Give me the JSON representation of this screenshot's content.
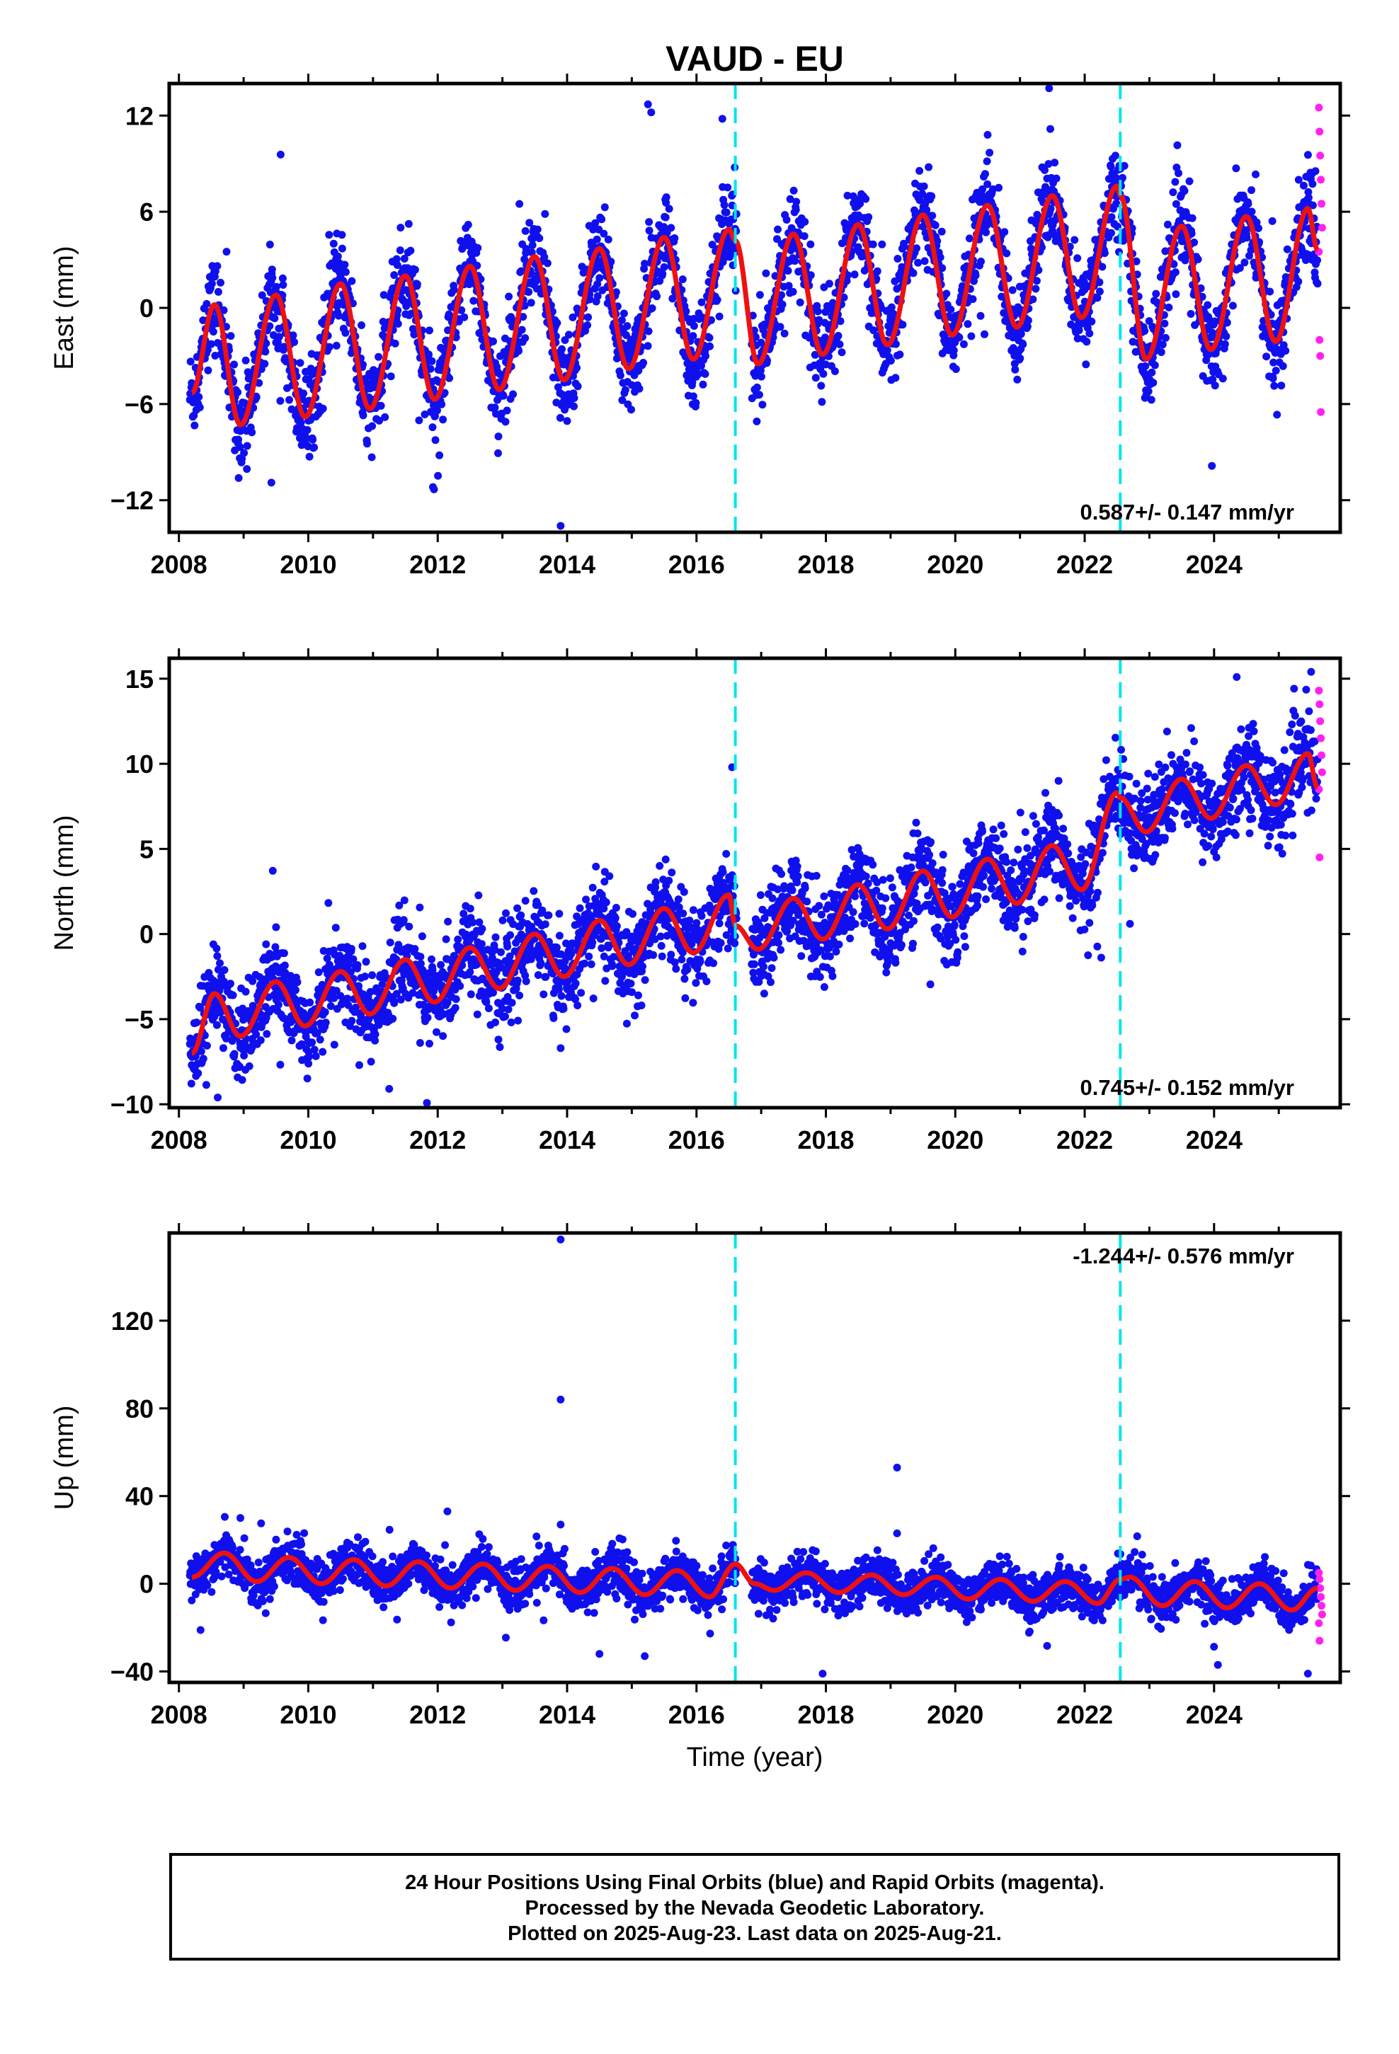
{
  "title": "VAUD - EU",
  "x_axis_label": "Time (year)",
  "caption": [
    "24 Hour Positions Using Final Orbits (blue) and Rapid Orbits (magenta).",
    "Processed by the Nevada Geodetic Laboratory.",
    "Plotted on 2025-Aug-23. Last data on 2025-Aug-21."
  ],
  "colors": {
    "final_orbits": "#1010ee",
    "rapid_orbits": "#ff22ee",
    "model": "#ee1111",
    "equipment_change": "#00e5ee",
    "frame": "#000000"
  },
  "chart_data": [
    {
      "type": "scatter",
      "component": "east",
      "ylabel": "East (mm)",
      "xlabel": "",
      "xlim": [
        2007.85,
        2025.95
      ],
      "ylim": [
        -14,
        14
      ],
      "x_ticks": [
        2008,
        2010,
        2012,
        2014,
        2016,
        2018,
        2020,
        2022,
        2024
      ],
      "y_ticks": [
        -12,
        -6,
        0,
        6,
        12
      ],
      "rate_label": "0.587+/- 0.147 mm/yr",
      "dashed_lines_x": [
        2016.6,
        2022.55
      ],
      "model_series": {
        "x": [
          2008.2,
          2008.55,
          2008.95,
          2009.5,
          2009.95,
          2010.5,
          2010.95,
          2011.5,
          2011.95,
          2012.5,
          2012.95,
          2013.5,
          2013.95,
          2014.5,
          2014.95,
          2015.5,
          2015.95,
          2016.5,
          2016.6,
          2016.95,
          2017.5,
          2017.95,
          2018.5,
          2018.95,
          2019.5,
          2019.95,
          2020.5,
          2020.95,
          2021.5,
          2021.95,
          2022.5,
          2022.55,
          2022.95,
          2023.5,
          2023.95,
          2024.5,
          2024.95,
          2025.45,
          2025.6
        ],
        "y": [
          -5.3,
          0.2,
          -7.3,
          0.8,
          -6.8,
          1.5,
          -6.3,
          2.0,
          -5.7,
          2.6,
          -5.1,
          3.2,
          -4.5,
          3.7,
          -3.8,
          4.4,
          -3.2,
          4.9,
          4.2,
          -3.5,
          4.6,
          -2.9,
          5.2,
          -2.3,
          5.8,
          -1.7,
          6.4,
          -1.2,
          7.0,
          -0.6,
          7.6,
          7.0,
          -3.2,
          5.1,
          -2.6,
          5.7,
          -2.1,
          6.2,
          3.6
        ]
      },
      "outliers": [
        {
          "x": 2013.9,
          "y": -13.6
        },
        {
          "x": 2015.25,
          "y": 12.7
        },
        {
          "x": 2015.3,
          "y": 12.2
        },
        {
          "x": 2021.45,
          "y": 13.7
        },
        {
          "x": 2020.5,
          "y": 10.8
        },
        {
          "x": 2016.4,
          "y": 11.8
        }
      ],
      "rapid_points": [
        {
          "x": 2025.62,
          "y": 12.5
        },
        {
          "x": 2025.63,
          "y": 11.0
        },
        {
          "x": 2025.64,
          "y": 9.5
        },
        {
          "x": 2025.65,
          "y": 8.0
        },
        {
          "x": 2025.66,
          "y": 6.5
        },
        {
          "x": 2025.67,
          "y": 5.0
        },
        {
          "x": 2025.62,
          "y": 3.5
        },
        {
          "x": 2025.63,
          "y": -2.0
        },
        {
          "x": 2025.64,
          "y": -3.0
        },
        {
          "x": 2025.65,
          "y": -6.5
        }
      ]
    },
    {
      "type": "scatter",
      "component": "north",
      "ylabel": "North (mm)",
      "xlabel": "",
      "xlim": [
        2007.85,
        2025.95
      ],
      "ylim": [
        -10.2,
        16.2
      ],
      "x_ticks": [
        2008,
        2010,
        2012,
        2014,
        2016,
        2018,
        2020,
        2022,
        2024
      ],
      "y_ticks": [
        -10,
        -5,
        0,
        5,
        10,
        15
      ],
      "rate_label": "0.745+/- 0.152 mm/yr",
      "dashed_lines_x": [
        2016.6,
        2022.55
      ],
      "model_series": {
        "x": [
          2008.2,
          2008.55,
          2008.95,
          2009.5,
          2009.95,
          2010.5,
          2010.95,
          2011.5,
          2011.95,
          2012.5,
          2012.95,
          2013.5,
          2013.95,
          2014.5,
          2014.95,
          2015.5,
          2015.95,
          2016.5,
          2016.6,
          2016.95,
          2017.5,
          2017.95,
          2018.5,
          2018.95,
          2019.5,
          2019.95,
          2020.5,
          2020.95,
          2021.5,
          2021.95,
          2022.5,
          2022.55,
          2022.95,
          2023.5,
          2023.95,
          2024.5,
          2024.95,
          2025.45,
          2025.6
        ],
        "y": [
          -7.0,
          -3.5,
          -6.0,
          -2.8,
          -5.4,
          -2.2,
          -4.7,
          -1.5,
          -4.0,
          -0.8,
          -3.2,
          0.0,
          -2.5,
          0.8,
          -1.8,
          1.5,
          -1.1,
          2.3,
          0.5,
          -0.9,
          2.1,
          -0.3,
          2.9,
          0.3,
          3.7,
          1.0,
          4.4,
          1.8,
          5.2,
          2.6,
          8.3,
          8.0,
          6.0,
          9.1,
          6.8,
          9.9,
          7.6,
          10.6,
          8.6
        ]
      },
      "outliers": [
        {
          "x": 2016.55,
          "y": 9.8
        },
        {
          "x": 2024.35,
          "y": 15.1
        },
        {
          "x": 2025.5,
          "y": 15.4
        },
        {
          "x": 2022.7,
          "y": 0.6
        },
        {
          "x": 2008.6,
          "y": -9.6
        },
        {
          "x": 2013.9,
          "y": -6.7
        }
      ],
      "rapid_points": [
        {
          "x": 2025.62,
          "y": 14.3
        },
        {
          "x": 2025.63,
          "y": 13.5
        },
        {
          "x": 2025.64,
          "y": 12.5
        },
        {
          "x": 2025.65,
          "y": 11.5
        },
        {
          "x": 2025.66,
          "y": 10.5
        },
        {
          "x": 2025.67,
          "y": 9.5
        },
        {
          "x": 2025.62,
          "y": 8.5
        },
        {
          "x": 2025.63,
          "y": 4.5
        }
      ]
    },
    {
      "type": "scatter",
      "component": "up",
      "ylabel": "Up (mm)",
      "xlabel": "Time (year)",
      "xlim": [
        2007.85,
        2025.95
      ],
      "ylim": [
        -45,
        160
      ],
      "x_ticks": [
        2008,
        2010,
        2012,
        2014,
        2016,
        2018,
        2020,
        2022,
        2024
      ],
      "y_ticks": [
        -40,
        0,
        40,
        80,
        120
      ],
      "rate_label": "-1.244+/- 0.576 mm/yr",
      "dashed_lines_x": [
        2016.6,
        2022.55
      ],
      "model_series": {
        "x": [
          2008.2,
          2008.7,
          2009.2,
          2009.7,
          2010.2,
          2010.7,
          2011.2,
          2011.7,
          2012.2,
          2012.7,
          2013.2,
          2013.7,
          2014.2,
          2014.7,
          2015.2,
          2015.7,
          2016.2,
          2016.6,
          2016.9,
          2017.2,
          2017.7,
          2018.2,
          2018.7,
          2019.2,
          2019.7,
          2020.2,
          2020.7,
          2021.2,
          2021.7,
          2022.2,
          2022.55,
          2022.7,
          2023.2,
          2023.7,
          2024.2,
          2024.7,
          2025.2,
          2025.6
        ],
        "y": [
          3,
          14,
          1,
          12,
          0,
          11,
          -1,
          10,
          -2,
          9,
          -3,
          8,
          -4,
          7,
          -5,
          6,
          -6,
          9,
          0,
          -3,
          5,
          -4,
          4,
          -5,
          3,
          -7,
          2,
          -8,
          1,
          -9,
          2,
          3,
          -10,
          1,
          -11,
          0,
          -12,
          -2
        ]
      },
      "outliers": [
        {
          "x": 2013.9,
          "y": 157
        },
        {
          "x": 2013.9,
          "y": 84
        },
        {
          "x": 2019.1,
          "y": 53
        },
        {
          "x": 2012.15,
          "y": 33
        },
        {
          "x": 2008.95,
          "y": 30
        },
        {
          "x": 2013.9,
          "y": 27
        },
        {
          "x": 2019.1,
          "y": 23
        },
        {
          "x": 2017.95,
          "y": -41
        },
        {
          "x": 2025.45,
          "y": -41
        },
        {
          "x": 2014.5,
          "y": -32
        },
        {
          "x": 2015.2,
          "y": -33
        }
      ],
      "rapid_points": [
        {
          "x": 2025.62,
          "y": 5
        },
        {
          "x": 2025.63,
          "y": 2
        },
        {
          "x": 2025.64,
          "y": -2
        },
        {
          "x": 2025.65,
          "y": -6
        },
        {
          "x": 2025.66,
          "y": -10
        },
        {
          "x": 2025.67,
          "y": -14
        },
        {
          "x": 2025.62,
          "y": -18
        },
        {
          "x": 2025.63,
          "y": -26
        }
      ]
    }
  ]
}
